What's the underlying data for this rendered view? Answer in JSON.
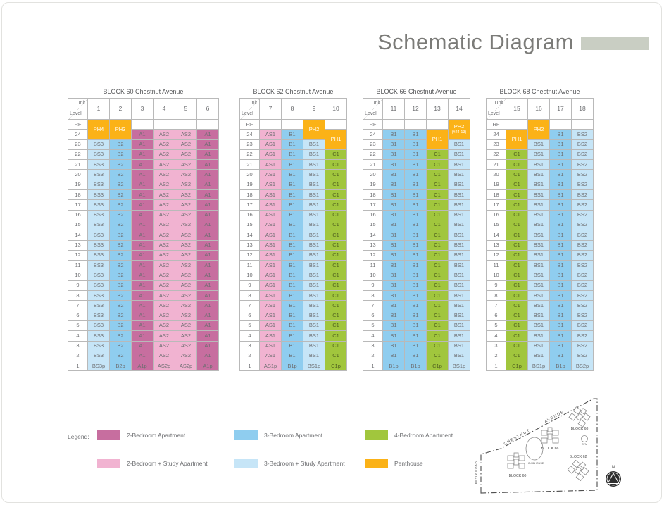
{
  "page": {
    "title": "Schematic Diagram"
  },
  "accent_bar_color": "#C9CEC3",
  "table_corner": {
    "top": "Unit",
    "bottom": "Level"
  },
  "levels": [
    "RF",
    "24",
    "23",
    "22",
    "21",
    "20",
    "19",
    "18",
    "17",
    "16",
    "15",
    "14",
    "13",
    "12",
    "11",
    "10",
    "9",
    "8",
    "7",
    "6",
    "5",
    "4",
    "3",
    "2",
    "1"
  ],
  "legend_colors": {
    "a": "#C76E9F",
    "as": "#F1B3D1",
    "b": "#8FCDEF",
    "bs": "#C6E5F7",
    "c": "#A1C63D",
    "ph": "#FBB217",
    "empty": "#FFFFFF"
  },
  "legend": {
    "label": "Legend:",
    "items": [
      {
        "label": "2-Bedroom Apartment",
        "type": "a"
      },
      {
        "label": "3-Bedroom Apartment",
        "type": "b"
      },
      {
        "label": "4-Bedroom Apartment",
        "type": "c"
      },
      {
        "label": "2-Bedroom + Study Apartment",
        "type": "as"
      },
      {
        "label": "3-Bedroom + Study Apartment",
        "type": "bs"
      },
      {
        "label": "Penthouse",
        "type": "ph"
      }
    ]
  },
  "blocks": [
    {
      "title": "BLOCK 60 Chestnut Avenue",
      "columns": [
        {
          "unit": "1",
          "segments": [
            {
              "label": "PH4",
              "type": "ph",
              "rows": 2,
              "merge": true
            },
            {
              "label": "BS3",
              "type": "bs",
              "rows": 22
            },
            {
              "label": "BS3p",
              "type": "bs",
              "rows": 1
            }
          ]
        },
        {
          "unit": "2",
          "segments": [
            {
              "label": "PH3",
              "type": "ph",
              "rows": 2,
              "merge": true
            },
            {
              "label": "B2",
              "type": "b",
              "rows": 22
            },
            {
              "label": "B2p",
              "type": "b",
              "rows": 1
            }
          ]
        },
        {
          "unit": "3",
          "segments": [
            {
              "label": "",
              "type": "empty",
              "rows": 1
            },
            {
              "label": "A1",
              "type": "a",
              "rows": 23
            },
            {
              "label": "A1p",
              "type": "a",
              "rows": 1
            }
          ]
        },
        {
          "unit": "4",
          "segments": [
            {
              "label": "",
              "type": "empty",
              "rows": 1
            },
            {
              "label": "AS2",
              "type": "as",
              "rows": 23
            },
            {
              "label": "AS2p",
              "type": "as",
              "rows": 1
            }
          ]
        },
        {
          "unit": "5",
          "segments": [
            {
              "label": "",
              "type": "empty",
              "rows": 1
            },
            {
              "label": "AS2",
              "type": "as",
              "rows": 23
            },
            {
              "label": "AS2p",
              "type": "as",
              "rows": 1
            }
          ]
        },
        {
          "unit": "6",
          "segments": [
            {
              "label": "",
              "type": "empty",
              "rows": 1
            },
            {
              "label": "A1",
              "type": "a",
              "rows": 23
            },
            {
              "label": "A1p",
              "type": "a",
              "rows": 1
            }
          ]
        }
      ]
    },
    {
      "title": "BLOCK 62 Chestnut Avenue",
      "columns": [
        {
          "unit": "7",
          "segments": [
            {
              "label": "",
              "type": "empty",
              "rows": 1
            },
            {
              "label": "AS1",
              "type": "as",
              "rows": 23
            },
            {
              "label": "AS1p",
              "type": "as",
              "rows": 1
            }
          ]
        },
        {
          "unit": "8",
          "segments": [
            {
              "label": "",
              "type": "empty",
              "rows": 1
            },
            {
              "label": "B1",
              "type": "b",
              "rows": 23
            },
            {
              "label": "B1p",
              "type": "b",
              "rows": 1
            }
          ]
        },
        {
          "unit": "9",
          "segments": [
            {
              "label": "PH2",
              "type": "ph",
              "rows": 2,
              "merge": true
            },
            {
              "label": "BS1",
              "type": "bs",
              "rows": 22
            },
            {
              "label": "BS1p",
              "type": "bs",
              "rows": 1
            }
          ]
        },
        {
          "unit": "10",
          "segments": [
            {
              "label": "",
              "type": "empty",
              "rows": 1
            },
            {
              "label": "PH1",
              "type": "ph",
              "rows": 2,
              "merge": true
            },
            {
              "label": "C1",
              "type": "c",
              "rows": 21
            },
            {
              "label": "C1p",
              "type": "c",
              "rows": 1
            }
          ]
        }
      ]
    },
    {
      "title": "BLOCK 66 Chestnut Avenue",
      "columns": [
        {
          "unit": "11",
          "segments": [
            {
              "label": "",
              "type": "empty",
              "rows": 1
            },
            {
              "label": "B1",
              "type": "b",
              "rows": 23
            },
            {
              "label": "B1p",
              "type": "b",
              "rows": 1
            }
          ]
        },
        {
          "unit": "12",
          "segments": [
            {
              "label": "",
              "type": "empty",
              "rows": 1
            },
            {
              "label": "B1",
              "type": "b",
              "rows": 23
            },
            {
              "label": "B1p",
              "type": "b",
              "rows": 1
            }
          ]
        },
        {
          "unit": "13",
          "segments": [
            {
              "label": "",
              "type": "empty",
              "rows": 1
            },
            {
              "label": "PH1",
              "type": "ph",
              "rows": 2,
              "merge": true
            },
            {
              "label": "C1",
              "type": "c",
              "rows": 21
            },
            {
              "label": "C1p",
              "type": "c",
              "rows": 1
            }
          ]
        },
        {
          "unit": "14",
          "segments": [
            {
              "label": "PH2",
              "sub": "(#24-13)",
              "type": "ph",
              "rows": 2,
              "merge": true
            },
            {
              "label": "BS1",
              "type": "bs",
              "rows": 22
            },
            {
              "label": "BS1p",
              "type": "bs",
              "rows": 1
            }
          ]
        }
      ]
    },
    {
      "title": "BLOCK 68 Chestnut Avenue",
      "columns": [
        {
          "unit": "15",
          "segments": [
            {
              "label": "",
              "type": "empty",
              "rows": 1
            },
            {
              "label": "PH1",
              "type": "ph",
              "rows": 2,
              "merge": true
            },
            {
              "label": "C1",
              "type": "c",
              "rows": 21
            },
            {
              "label": "C1p",
              "type": "c",
              "rows": 1
            }
          ]
        },
        {
          "unit": "16",
          "segments": [
            {
              "label": "PH2",
              "type": "ph",
              "rows": 2,
              "merge": true
            },
            {
              "label": "BS1",
              "type": "bs",
              "rows": 22
            },
            {
              "label": "BS1p",
              "type": "bs",
              "rows": 1
            }
          ]
        },
        {
          "unit": "17",
          "segments": [
            {
              "label": "",
              "type": "empty",
              "rows": 1
            },
            {
              "label": "B1",
              "type": "b",
              "rows": 23
            },
            {
              "label": "B1p",
              "type": "b",
              "rows": 1
            }
          ]
        },
        {
          "unit": "18",
          "segments": [
            {
              "label": "",
              "type": "empty",
              "rows": 1
            },
            {
              "label": "BS2",
              "type": "bs",
              "rows": 23
            },
            {
              "label": "BS2p",
              "type": "bs",
              "rows": 1
            }
          ]
        }
      ]
    }
  ],
  "sitemap": {
    "road_top_1": "CHESTNUT",
    "road_top_2": "AVENUE",
    "road_left": "PETIR ROAD",
    "block_68": "BLOCK 68",
    "block_66": "BLOCK 66",
    "block_62": "BLOCK 62",
    "block_60": "BLOCK 60",
    "clubhouse": "CLUBHOUSE",
    "gym": "GYM",
    "compass_n": "N"
  }
}
